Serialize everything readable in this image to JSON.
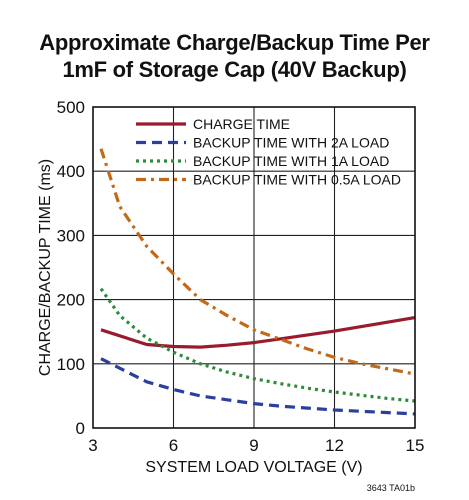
{
  "title_line1": "Approximate Charge/Backup Time Per",
  "title_line2": "1mF of Storage Cap (40V Backup)",
  "footnote": "3643 TA01b",
  "chart_data": {
    "type": "line",
    "title": "Approximate Charge/Backup Time Per 1mF of Storage Cap (40V Backup)",
    "xlabel": "SYSTEM LOAD VOLTAGE (V)",
    "ylabel": "CHARGE/BACKUP TIME (ms)",
    "xlim": [
      3,
      15
    ],
    "ylim": [
      0,
      500
    ],
    "xticks": [
      3,
      6,
      9,
      12,
      15
    ],
    "yticks": [
      0,
      100,
      200,
      300,
      400,
      500
    ],
    "grid": true,
    "legend_position": "top-right",
    "series": [
      {
        "name": "CHARGE TIME",
        "color": "#9b1b2e",
        "style": "solid",
        "x": [
          3.3,
          5,
          6,
          7,
          8,
          9,
          10,
          11,
          12,
          13,
          14,
          15
        ],
        "y": [
          153,
          130,
          127,
          126,
          129,
          133,
          139,
          145,
          151,
          158,
          165,
          172
        ]
      },
      {
        "name": "BACKUP TIME WITH 2A LOAD",
        "color": "#2b3f9e",
        "style": "dashed",
        "x": [
          3.3,
          5,
          6,
          7,
          8,
          9,
          10,
          11,
          12,
          13,
          14,
          15
        ],
        "y": [
          108,
          72,
          60,
          50,
          44,
          38,
          34,
          31,
          28,
          26,
          24,
          22
        ]
      },
      {
        "name": "BACKUP TIME WITH 1A LOAD",
        "color": "#2e8b3a",
        "style": "dotted",
        "x": [
          3.3,
          4,
          5,
          6,
          7,
          8,
          9,
          10,
          11,
          12,
          13,
          14,
          15
        ],
        "y": [
          217,
          175,
          140,
          118,
          100,
          87,
          77,
          69,
          62,
          56,
          51,
          46,
          42
        ]
      },
      {
        "name": "BACKUP TIME WITH 0.5A LOAD",
        "color": "#c06a1a",
        "style": "dash-dot",
        "x": [
          3.3,
          4,
          5,
          6,
          7,
          8,
          9,
          10,
          11,
          12,
          13,
          14,
          15
        ],
        "y": [
          435,
          345,
          283,
          240,
          200,
          175,
          153,
          138,
          123,
          110,
          100,
          92,
          84
        ]
      }
    ]
  }
}
